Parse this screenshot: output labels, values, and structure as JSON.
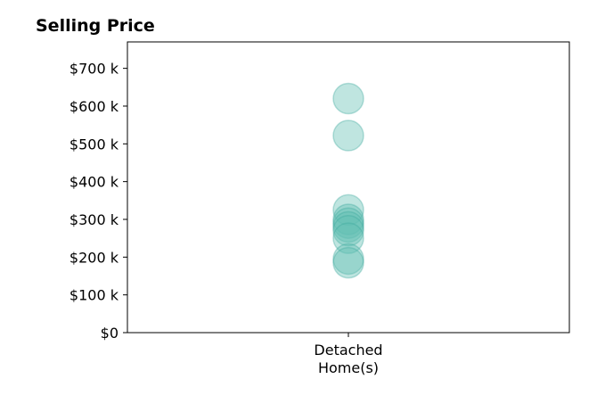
{
  "chart_data": {
    "type": "scatter",
    "title": "Selling Price",
    "categories": [
      "Detached",
      "Home(s)"
    ],
    "y_ticks": [
      "$0",
      "$100 k",
      "$200 k",
      "$300 k",
      "$400 k",
      "$500 k",
      "$600 k",
      "$700 k"
    ],
    "y_tick_values": [
      0,
      100000,
      200000,
      300000,
      400000,
      500000,
      600000,
      700000
    ],
    "ylim": [
      0,
      770000
    ],
    "grid": false,
    "series": [
      {
        "category_index": 0,
        "values": [
          620000,
          522000,
          325000,
          300000,
          290000,
          280000,
          270000,
          250000,
          195000,
          185000
        ]
      }
    ],
    "colors": {
      "marker": "#5fbdb2",
      "marker_edge": "#3aa69a"
    }
  }
}
